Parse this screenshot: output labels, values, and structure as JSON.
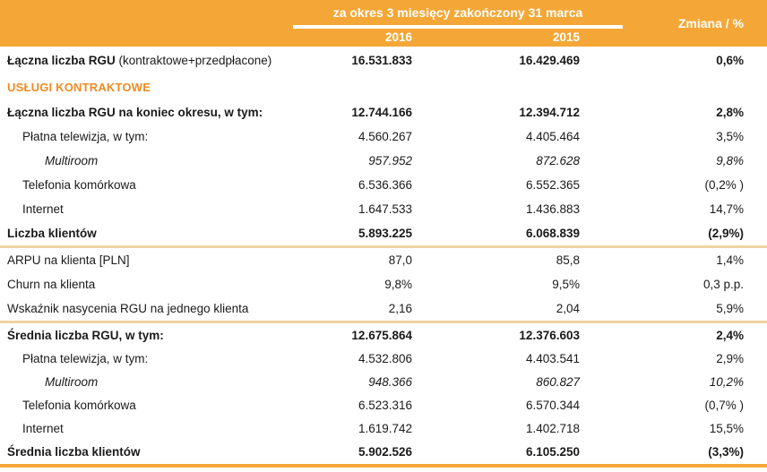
{
  "header": {
    "period_title": "za okres 3 miesięcy zakończony 31 marca",
    "col_2016": "2016",
    "col_2015": "2015",
    "change_label": "Zmiana / %"
  },
  "colors": {
    "header_orange": "#F4A736",
    "section_orange": "#EF8B22",
    "divider_tan": "#EFD49E",
    "header_text": "#FFFFFF",
    "body_text": "#1A1A1A"
  },
  "table": {
    "columns": [
      "",
      "2016",
      "2015",
      "Zmiana / %"
    ],
    "rows": [
      {
        "type": "row",
        "style": "bold",
        "indent": 0,
        "label": "Łączna liczba RGU",
        "label_suffix": " (kontraktowe+przedpłacone)",
        "v2016": "16.531.833",
        "v2015": "16.429.469",
        "change": "0,6%"
      },
      {
        "type": "section",
        "label": "USŁUGI KONTRAKTOWE"
      },
      {
        "type": "row",
        "style": "bold",
        "indent": 0,
        "label": "Łączna liczba RGU na koniec okresu, w tym:",
        "v2016": "12.744.166",
        "v2015": "12.394.712",
        "change": "2,8%"
      },
      {
        "type": "row",
        "style": "normal",
        "indent": 1,
        "label": "Płatna telewizja, w tym:",
        "v2016": "4.560.267",
        "v2015": "4.405.464",
        "change": "3,5%"
      },
      {
        "type": "row",
        "style": "italic",
        "indent": 2,
        "label": "Multiroom",
        "v2016": "957.952",
        "v2015": "872.628",
        "change": "9,8%"
      },
      {
        "type": "row",
        "style": "normal",
        "indent": 1,
        "label": "Telefonia komórkowa",
        "v2016": "6.536.366",
        "v2015": "6.552.365",
        "change": "(0,2% )"
      },
      {
        "type": "row",
        "style": "normal",
        "indent": 1,
        "label": "Internet",
        "v2016": "1.647.533",
        "v2015": "1.436.883",
        "change": "14,7%"
      },
      {
        "type": "row",
        "style": "bold",
        "indent": 0,
        "label": "Liczba klientów",
        "v2016": "5.893.225",
        "v2015": "6.068.839",
        "change": "(2,9%)"
      },
      {
        "type": "divider"
      },
      {
        "type": "row",
        "style": "normal",
        "indent": 0,
        "label": "ARPU na klienta [PLN]",
        "v2016": "87,0",
        "v2015": "85,8",
        "change": "1,4%"
      },
      {
        "type": "row",
        "style": "normal",
        "indent": 0,
        "label": "Churn na klienta",
        "v2016": "9,8%",
        "v2015": "9,5%",
        "change": "0,3 p.p."
      },
      {
        "type": "row",
        "style": "normal",
        "indent": 0,
        "label": "Wskaźnik nasycenia RGU na jednego klienta",
        "v2016": "2,16",
        "v2015": "2,04",
        "change": "5,9%"
      },
      {
        "type": "divider"
      },
      {
        "type": "row",
        "style": "bold",
        "indent": 0,
        "label": "Średnia liczba RGU, w tym:",
        "v2016": "12.675.864",
        "v2015": "12.376.603",
        "change": "2,4%"
      },
      {
        "type": "row",
        "style": "normal",
        "indent": 1,
        "label": "Płatna telewizja, w tym:",
        "v2016": "4.532.806",
        "v2015": "4.403.541",
        "change": "2,9%"
      },
      {
        "type": "row",
        "style": "italic",
        "indent": 2,
        "label": "Multiroom",
        "v2016": "948.366",
        "v2015": "860.827",
        "change": "10,2%"
      },
      {
        "type": "row",
        "style": "normal",
        "indent": 1,
        "label": "Telefonia komórkowa",
        "v2016": "6.523.316",
        "v2015": "6.570.344",
        "change": "(0,7% )"
      },
      {
        "type": "row",
        "style": "normal",
        "indent": 1,
        "label": "Internet",
        "v2016": "1.619.742",
        "v2015": "1.402.718",
        "change": "15,5%"
      },
      {
        "type": "row",
        "style": "bold",
        "indent": 0,
        "label": "Średnia liczba klientów",
        "v2016": "5.902.526",
        "v2015": "6.105.250",
        "change": "(3,3%)"
      }
    ]
  }
}
